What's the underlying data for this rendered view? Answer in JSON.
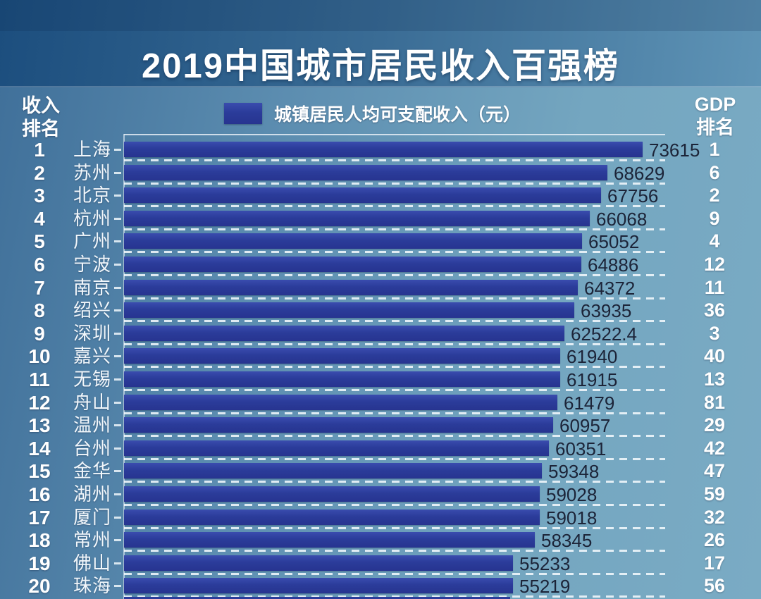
{
  "title": "2019中国城市居民收入百强榜",
  "left_column_header": "收入\n排名",
  "right_column_header": "GDP\n排名",
  "legend": {
    "label": "城镇居民人均可支配收入（元）",
    "swatch_color": "#2b3c9a"
  },
  "colors": {
    "bar": "#2b3c9a",
    "value_text": "#1c2438",
    "white_text": "#ffffff",
    "header_band_left": "#1c4e7e",
    "header_band_right": "#5f94b6",
    "body_bg_left": "#3f6f99",
    "body_bg_right": "#7aabc4"
  },
  "chart_data": {
    "type": "bar",
    "orientation": "horizontal",
    "title": "2019中国城市居民收入百强榜",
    "series_name": "城镇居民人均可支配收入（元）",
    "xlim": [
      0,
      76800
    ],
    "grid": "dashed-row-separators",
    "legend_position": "top-center",
    "categories": [
      "上海",
      "苏州",
      "北京",
      "杭州",
      "广州",
      "宁波",
      "南京",
      "绍兴",
      "深圳",
      "嘉兴",
      "无锡",
      "舟山",
      "温州",
      "台州",
      "金华",
      "湖州",
      "厦门",
      "常州",
      "佛山",
      "珠海"
    ],
    "values": [
      73615,
      68629,
      67756,
      66068,
      65052,
      64886,
      64372,
      63935,
      62522.4,
      61940,
      61915,
      61479,
      60957,
      60351,
      59348,
      59028,
      59018,
      58345,
      55233,
      55219
    ],
    "income_ranks": [
      1,
      2,
      3,
      4,
      5,
      6,
      7,
      8,
      9,
      10,
      11,
      12,
      13,
      14,
      15,
      16,
      17,
      18,
      19,
      20
    ],
    "gdp_ranks": [
      1,
      6,
      2,
      9,
      4,
      12,
      11,
      36,
      3,
      40,
      13,
      81,
      29,
      42,
      47,
      59,
      32,
      26,
      17,
      56
    ],
    "rows": [
      {
        "income_rank": 1,
        "city": "上海",
        "value": 73615,
        "gdp_rank": 1
      },
      {
        "income_rank": 2,
        "city": "苏州",
        "value": 68629,
        "gdp_rank": 6
      },
      {
        "income_rank": 3,
        "city": "北京",
        "value": 67756,
        "gdp_rank": 2
      },
      {
        "income_rank": 4,
        "city": "杭州",
        "value": 66068,
        "gdp_rank": 9
      },
      {
        "income_rank": 5,
        "city": "广州",
        "value": 65052,
        "gdp_rank": 4
      },
      {
        "income_rank": 6,
        "city": "宁波",
        "value": 64886,
        "gdp_rank": 12
      },
      {
        "income_rank": 7,
        "city": "南京",
        "value": 64372,
        "gdp_rank": 11
      },
      {
        "income_rank": 8,
        "city": "绍兴",
        "value": 63935,
        "gdp_rank": 36
      },
      {
        "income_rank": 9,
        "city": "深圳",
        "value": 62522.4,
        "gdp_rank": 3
      },
      {
        "income_rank": 10,
        "city": "嘉兴",
        "value": 61940,
        "gdp_rank": 40
      },
      {
        "income_rank": 11,
        "city": "无锡",
        "value": 61915,
        "gdp_rank": 13
      },
      {
        "income_rank": 12,
        "city": "舟山",
        "value": 61479,
        "gdp_rank": 81
      },
      {
        "income_rank": 13,
        "city": "温州",
        "value": 60957,
        "gdp_rank": 29
      },
      {
        "income_rank": 14,
        "city": "台州",
        "value": 60351,
        "gdp_rank": 42
      },
      {
        "income_rank": 15,
        "city": "金华",
        "value": 59348,
        "gdp_rank": 47
      },
      {
        "income_rank": 16,
        "city": "湖州",
        "value": 59028,
        "gdp_rank": 59
      },
      {
        "income_rank": 17,
        "city": "厦门",
        "value": 59018,
        "gdp_rank": 32
      },
      {
        "income_rank": 18,
        "city": "常州",
        "value": 58345,
        "gdp_rank": 26
      },
      {
        "income_rank": 19,
        "city": "佛山",
        "value": 55233,
        "gdp_rank": 17
      },
      {
        "income_rank": 20,
        "city": "珠海",
        "value": 55219,
        "gdp_rank": 56
      }
    ]
  }
}
